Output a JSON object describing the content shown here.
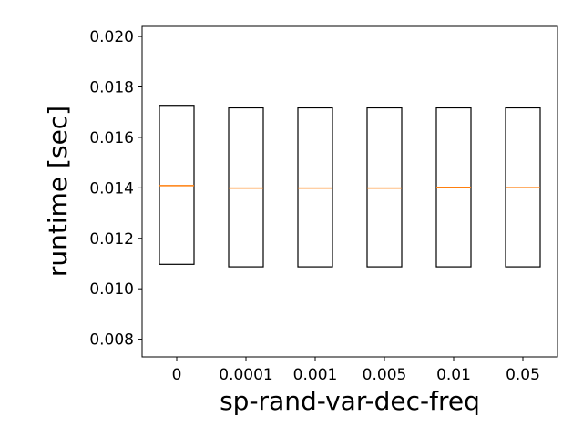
{
  "chart_data": {
    "type": "box",
    "title": "",
    "xlabel": "sp-rand-var-dec-freq",
    "ylabel": "runtime [sec]",
    "ylim": [
      0.0073,
      0.0204
    ],
    "yticks": [
      "0.008",
      "0.010",
      "0.012",
      "0.014",
      "0.016",
      "0.018",
      "0.020"
    ],
    "categories": [
      "0",
      "0.0001",
      "0.001",
      "0.005",
      "0.01",
      "0.05"
    ],
    "highlight_category": "0.005",
    "highlight_color": "#ff0000",
    "box_color": "#000000",
    "median_color": "#ff7f0e",
    "boxes": [
      {
        "category": "0",
        "q1": 0.01097,
        "median": 0.01409,
        "q3": 0.01727
      },
      {
        "category": "0.0001",
        "q1": 0.01087,
        "median": 0.01399,
        "q3": 0.01717
      },
      {
        "category": "0.001",
        "q1": 0.01087,
        "median": 0.01399,
        "q3": 0.01717
      },
      {
        "category": "0.005",
        "q1": 0.01087,
        "median": 0.01399,
        "q3": 0.01717
      },
      {
        "category": "0.01",
        "q1": 0.01087,
        "median": 0.01402,
        "q3": 0.01717
      },
      {
        "category": "0.05",
        "q1": 0.01087,
        "median": 0.01401,
        "q3": 0.01717
      }
    ]
  }
}
